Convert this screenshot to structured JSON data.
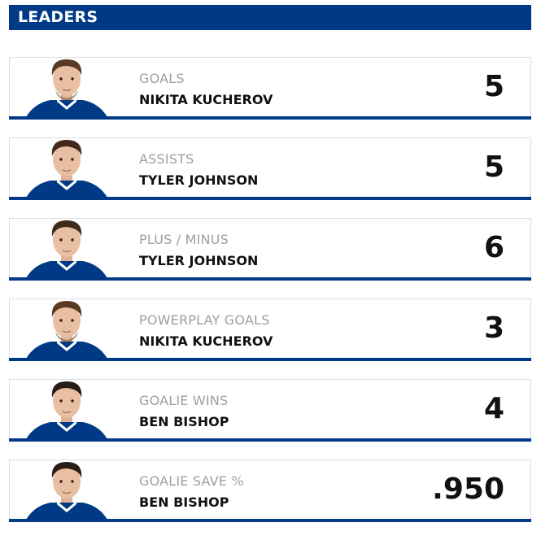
{
  "header": {
    "title": "LEADERS"
  },
  "colors": {
    "brand": "#003a86",
    "label_gray": "#9aa0a6",
    "text_dark": "#111111",
    "border": "#d9dde3"
  },
  "leaders": [
    {
      "stat": "GOALS",
      "player": "NIKITA KUCHEROV",
      "value": "5",
      "photo": "player-photo-kucherov",
      "hair": "brown-light",
      "beard": true
    },
    {
      "stat": "ASSISTS",
      "player": "TYLER JOHNSON",
      "value": "5",
      "photo": "player-photo-johnson",
      "hair": "brown-dark",
      "beard": false
    },
    {
      "stat": "PLUS / MINUS",
      "player": "TYLER JOHNSON",
      "value": "6",
      "photo": "player-photo-johnson",
      "hair": "brown-dark",
      "beard": false
    },
    {
      "stat": "POWERPLAY GOALS",
      "player": "NIKITA KUCHEROV",
      "value": "3",
      "photo": "player-photo-kucherov",
      "hair": "brown-light",
      "beard": true
    },
    {
      "stat": "GOALIE WINS",
      "player": "BEN BISHOP",
      "value": "4",
      "photo": "player-photo-bishop",
      "hair": "dark",
      "beard": false
    },
    {
      "stat": "GOALIE SAVE %",
      "player": "BEN BISHOP",
      "value": ".950",
      "photo": "player-photo-bishop",
      "hair": "dark",
      "beard": false
    }
  ]
}
